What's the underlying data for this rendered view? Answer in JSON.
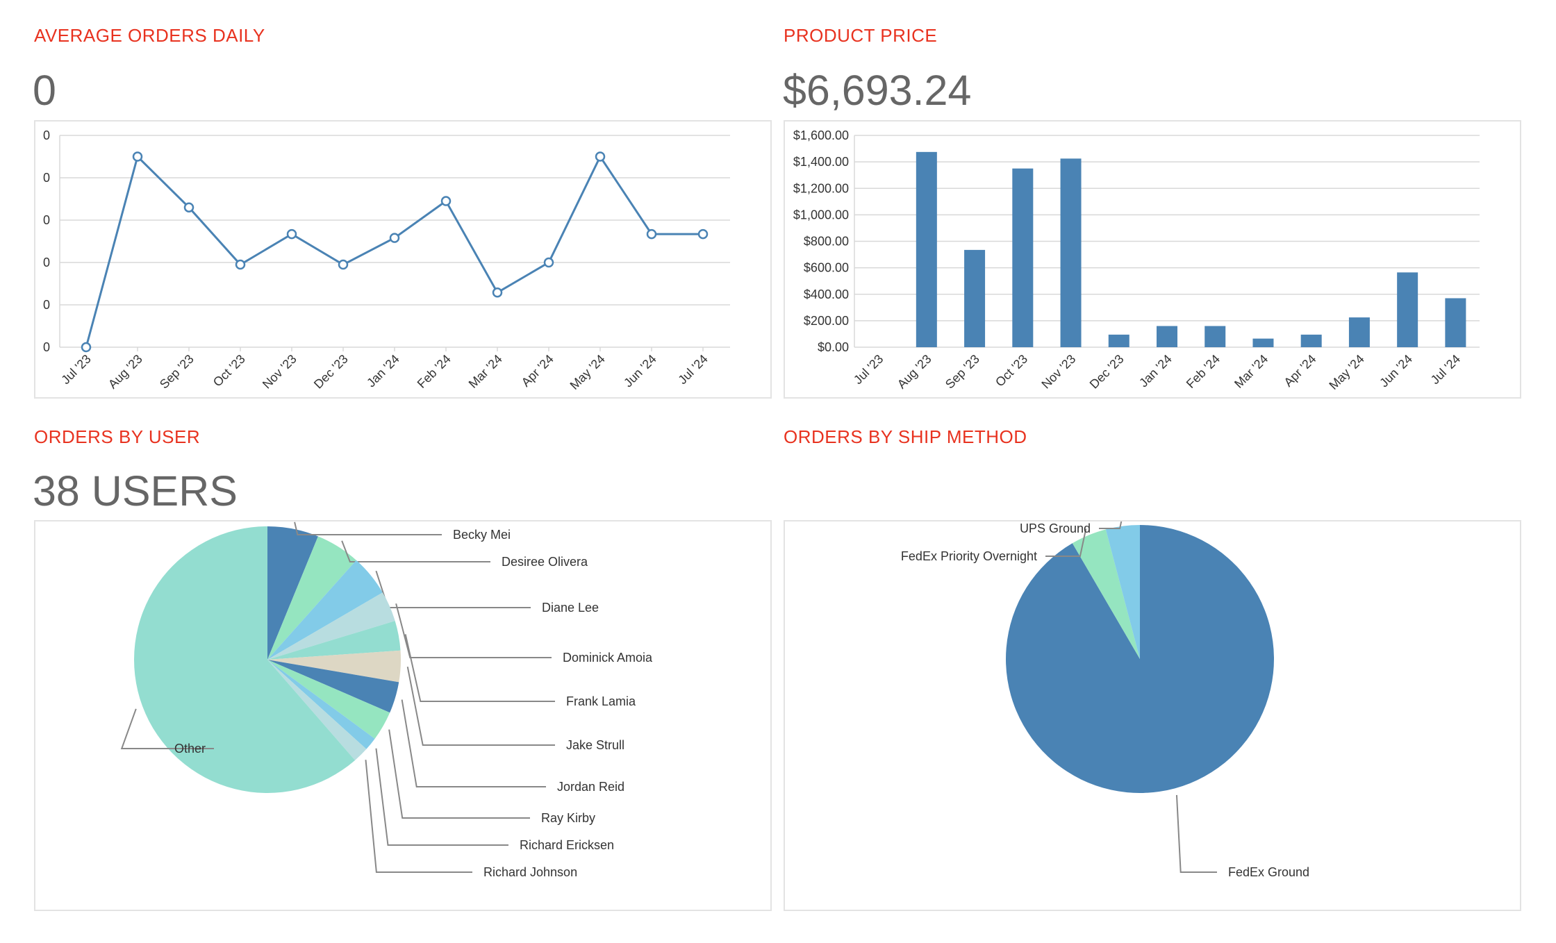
{
  "panels": {
    "avg_orders": {
      "title": "AVERAGE ORDERS DAILY",
      "value": "0"
    },
    "product_price": {
      "title": "PRODUCT PRICE",
      "value": "$6,693.24"
    },
    "orders_by_user": {
      "title": "ORDERS BY USER",
      "value": "38 USERS"
    },
    "orders_by_ship": {
      "title": "ORDERS BY SHIP METHOD"
    }
  },
  "colors": {
    "title_red": "#e8321f",
    "line_blue": "#4a83b4",
    "grid": "#d8d8d8"
  },
  "chart_data": [
    {
      "id": "line",
      "type": "line",
      "title": "AVERAGE ORDERS DAILY",
      "categories": [
        "Jul '23",
        "Aug '23",
        "Sep '23",
        "Oct '23",
        "Nov '23",
        "Dec '23",
        "Jan '24",
        "Feb '24",
        "Mar '24",
        "Apr '24",
        "May '24",
        "Jun '24",
        "Jul '24"
      ],
      "values": [
        0,
        0.45,
        0.33,
        0.195,
        0.267,
        0.195,
        0.258,
        0.345,
        0.129,
        0.2,
        0.45,
        0.267,
        0.267
      ],
      "ylim": [
        0,
        0.5
      ],
      "yticks": [
        0,
        0.1,
        0.2,
        0.3,
        0.4,
        0.5
      ],
      "ytick_labels": [
        "0",
        "0",
        "0",
        "0",
        "0",
        "0"
      ]
    },
    {
      "id": "bar",
      "type": "bar",
      "title": "PRODUCT PRICE",
      "categories": [
        "Jul '23",
        "Aug '23",
        "Sep '23",
        "Oct '23",
        "Nov '23",
        "Dec '23",
        "Jan '24",
        "Feb '24",
        "Mar '24",
        "Apr '24",
        "May '24",
        "Jun '24",
        "Jul '24"
      ],
      "values": [
        0,
        1475,
        735,
        1350,
        1425,
        95,
        160,
        160,
        65,
        95,
        225,
        565,
        370
      ],
      "ylim": [
        0,
        1600
      ],
      "yticks": [
        0,
        200,
        400,
        600,
        800,
        1000,
        1200,
        1400,
        1600
      ],
      "ytick_labels": [
        "$0.00",
        "$200.00",
        "$400.00",
        "$600.00",
        "$800.00",
        "$1,000.00",
        "$1,200.00",
        "$1,400.00",
        "$1,600.00"
      ]
    },
    {
      "id": "pie_users",
      "type": "pie",
      "title": "ORDERS BY USER",
      "slices": [
        {
          "label": "Becky Mei",
          "value": 6.2,
          "color": "#4a83b4"
        },
        {
          "label": "Desiree Olivera",
          "value": 5.4,
          "color": "#95e5c0"
        },
        {
          "label": "Diane Lee",
          "value": 5.0,
          "color": "#82cbe8"
        },
        {
          "label": "Dominick Amoia",
          "value": 3.7,
          "color": "#b8dde0"
        },
        {
          "label": "Frank Lamia",
          "value": 3.6,
          "color": "#93ddd0"
        },
        {
          "label": "Jake Strull",
          "value": 3.8,
          "color": "#ddd7c4"
        },
        {
          "label": "Jordan Reid",
          "value": 3.8,
          "color": "#4a83b4"
        },
        {
          "label": "Ray Kirby",
          "value": 3.6,
          "color": "#95e5c0"
        },
        {
          "label": "Richard Ericksen",
          "value": 1.6,
          "color": "#82cbe8"
        },
        {
          "label": "Richard Johnson",
          "value": 1.9,
          "color": "#b8dde0"
        },
        {
          "label": "Other",
          "value": 61.4,
          "color": "#93ddd0"
        }
      ]
    },
    {
      "id": "pie_ship",
      "type": "pie",
      "title": "ORDERS BY SHIP METHOD",
      "slices": [
        {
          "label": "FedEx Ground",
          "value": 91.6,
          "color": "#4a83b4"
        },
        {
          "label": "FedEx Priority Overnight",
          "value": 4.3,
          "color": "#95e5c0"
        },
        {
          "label": "UPS Ground",
          "value": 4.1,
          "color": "#82cbe8"
        }
      ]
    }
  ]
}
